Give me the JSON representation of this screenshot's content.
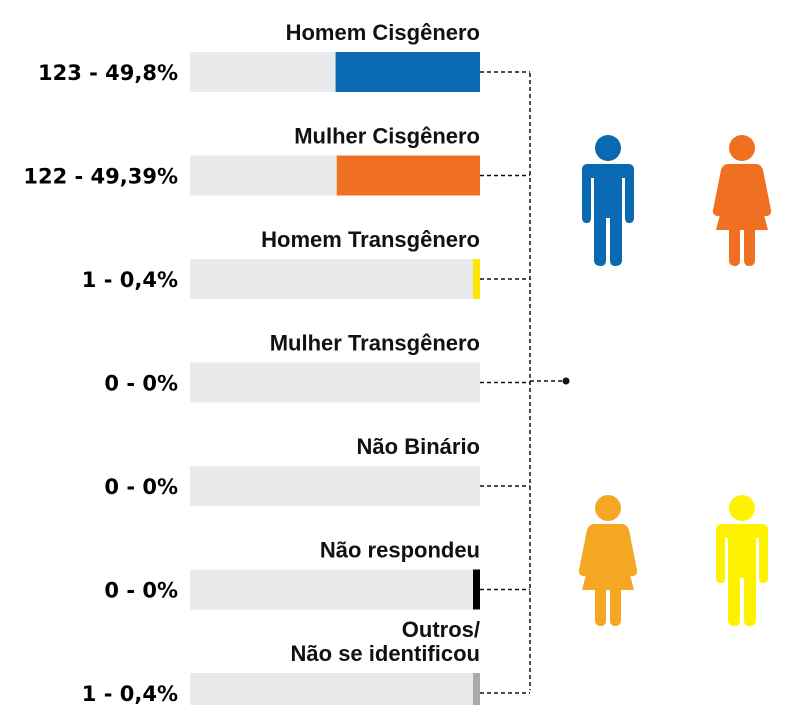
{
  "chart_data": {
    "type": "bar",
    "categories": [
      "Homem Cisgênero",
      "Mulher Cisgênero",
      "Homem Transgênero",
      "Mulher Transgênero",
      "Não Binário",
      "Não respondeu",
      [
        "Outros/",
        "Não se identificou"
      ]
    ],
    "values": [
      49.8,
      49.39,
      0.4,
      0,
      0,
      0,
      0.4
    ],
    "value_labels": [
      "123 - 49,8%",
      "122 - 49,39%",
      "1 - 0,4%",
      "0 - 0%",
      "0 - 0%",
      "0 - 0%",
      "1 - 0,4%"
    ],
    "colors": [
      "#0a69b3",
      "#f07022",
      "#ffe600",
      "#e9eaec",
      "#e9eaec",
      "#000000",
      "#aaaaaa"
    ],
    "xlim": [
      0,
      100
    ]
  }
}
